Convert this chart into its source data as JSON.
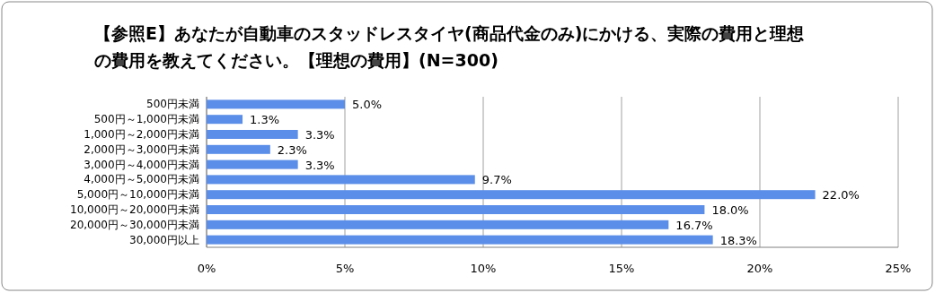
{
  "chart_data": {
    "type": "bar",
    "orientation": "horizontal",
    "title": "【参照E】あなたが自動車のスタッドレスタイヤ(商品代金のみ)にかける、実際の費用と理想の費用を教えてください。【理想の費用】(N=300)",
    "categories": [
      "500円未満",
      "500円～1,000円未満",
      "1,000円～2,000円未満",
      "2,000円～3,000円未満",
      "3,000円～4,000円未満",
      "4,000円～5,000円未満",
      "5,000円～10,000円未満",
      "10,000円～20,000円未満",
      "20,000円～30,000円未満",
      "30,000円以上"
    ],
    "values": [
      5.0,
      1.3,
      3.3,
      2.3,
      3.3,
      9.7,
      22.0,
      18.0,
      16.7,
      18.3
    ],
    "value_labels": [
      "5.0%",
      "1.3%",
      "3.3%",
      "2.3%",
      "3.3%",
      "9.7%",
      "22.0%",
      "18.0%",
      "16.7%",
      "18.3%"
    ],
    "color": "#5b8ee8",
    "xlim": [
      0,
      25
    ],
    "xticks": [
      {
        "value": 0,
        "label": "0%"
      },
      {
        "value": 5,
        "label": "5%"
      },
      {
        "value": 10,
        "label": "10%"
      },
      {
        "value": 15,
        "label": "15%"
      },
      {
        "value": 20,
        "label": "20%"
      },
      {
        "value": 25,
        "label": "25%"
      }
    ],
    "grid": "x"
  }
}
